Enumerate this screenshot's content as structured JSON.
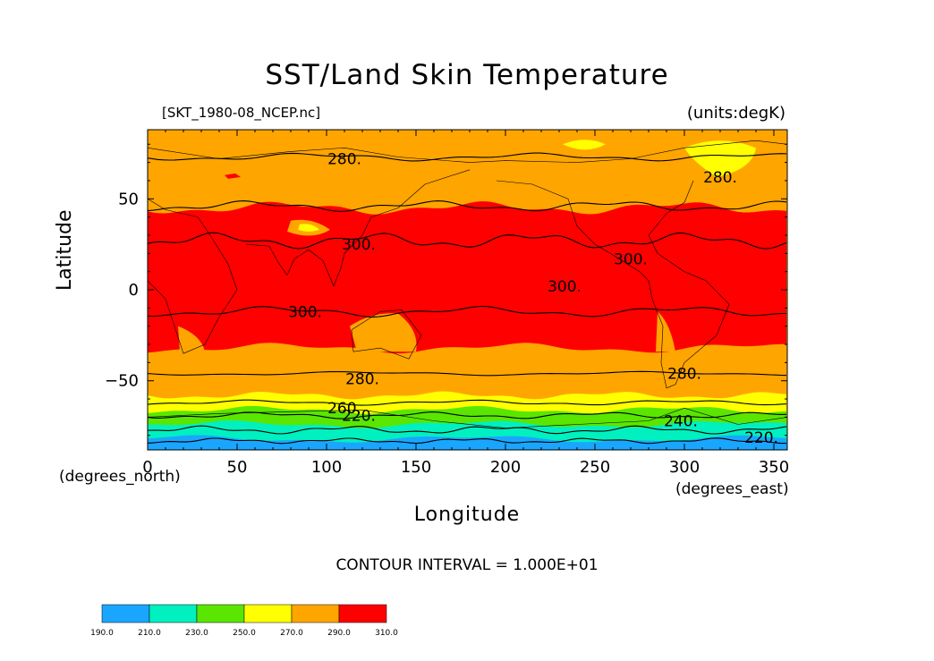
{
  "chart_data": {
    "type": "heatmap",
    "title": "SST/Land Skin Temperature",
    "subtitle_left": "[SKT_1980-08_NCEP.nc]",
    "subtitle_right": "(units:degK)",
    "xlabel": "Longitude",
    "ylabel": "Latitude",
    "x_unit": "(degrees_east)",
    "y_unit": "(degrees_north)",
    "xlim": [
      0,
      357.5
    ],
    "ylim": [
      -88,
      88
    ],
    "x_ticks": [
      0,
      50,
      100,
      150,
      200,
      250,
      300,
      350
    ],
    "x_tick_labels": [
      "0",
      "50",
      "100",
      "150",
      "200",
      "250",
      "300",
      "350"
    ],
    "y_ticks": [
      50,
      0,
      -50
    ],
    "y_tick_labels": [
      "50",
      "0",
      "−50"
    ],
    "contour_interval_text": "CONTOUR INTERVAL = 1.000E+01",
    "colorbar": {
      "levels": [
        190,
        210,
        230,
        250,
        270,
        290,
        310
      ],
      "level_labels": [
        "190.0",
        "210.0",
        "230.0",
        "250.0",
        "270.0",
        "290.0",
        "310.0"
      ],
      "colors": [
        "#1aa6ff",
        "#00f0c0",
        "#5ae600",
        "#ffff00",
        "#ffa500",
        "#ff0000"
      ]
    },
    "bands": [
      {
        "range": [
          290,
          310
        ],
        "color": "#ff0000",
        "lat_north": 48,
        "lat_south": -34
      },
      {
        "range": [
          270,
          290
        ],
        "color": "#ffa500",
        "lat_north": 88,
        "lat_south": -58
      },
      {
        "range": [
          250,
          270
        ],
        "color": "#ffff00",
        "lat_north": -58,
        "lat_south": -66
      },
      {
        "range": [
          230,
          250
        ],
        "color": "#5ae600",
        "lat_north": -66,
        "lat_south": -74
      },
      {
        "range": [
          210,
          230
        ],
        "color": "#00f0c0",
        "lat_north": -74,
        "lat_south": -82
      },
      {
        "range": [
          190,
          210
        ],
        "color": "#1aa6ff",
        "lat_north": -82,
        "lat_south": -88
      }
    ],
    "contour_labels": [
      {
        "text": "280.",
        "lon": 110,
        "lat": 72
      },
      {
        "text": "280.",
        "lon": 320,
        "lat": 62
      },
      {
        "text": "300.",
        "lon": 118,
        "lat": 25
      },
      {
        "text": "300.",
        "lon": 233,
        "lat": 2
      },
      {
        "text": "300.",
        "lon": 270,
        "lat": 17
      },
      {
        "text": "300.",
        "lon": 88,
        "lat": -12
      },
      {
        "text": "280.",
        "lon": 120,
        "lat": -49
      },
      {
        "text": "280.",
        "lon": 300,
        "lat": -46
      },
      {
        "text": "260.",
        "lon": 110,
        "lat": -65
      },
      {
        "text": "220.",
        "lon": 118,
        "lat": -69
      },
      {
        "text": "240.",
        "lon": 298,
        "lat": -72
      },
      {
        "text": "220.",
        "lon": 343,
        "lat": -81
      }
    ]
  }
}
